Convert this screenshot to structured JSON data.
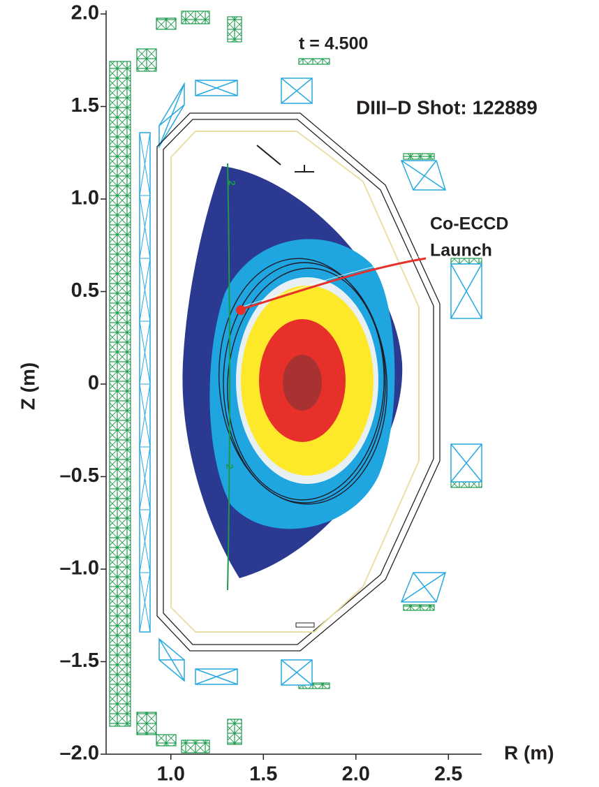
{
  "chart_data": {
    "type": "equilibrium",
    "title": "DIII–D Shot: 122889",
    "subtitle": "t = 4.500",
    "x_label": "R (m)",
    "y_label": "Z (m)",
    "annotations": [
      "Co-ECCD",
      "Launch"
    ],
    "contour_labels": [
      "2",
      "2"
    ],
    "xlim": [
      0.65,
      2.68
    ],
    "ylim": [
      -2.0,
      2.0
    ],
    "xticks": [
      {
        "value": 1.0,
        "label": "1.0"
      },
      {
        "value": 1.5,
        "label": "1.5"
      },
      {
        "value": 2.0,
        "label": "2.0"
      },
      {
        "value": 2.5,
        "label": "2.5"
      }
    ],
    "yticks": [
      {
        "value": 2.0,
        "label": "2.0"
      },
      {
        "value": 1.5,
        "label": "1.5"
      },
      {
        "value": 1.0,
        "label": "1.0"
      },
      {
        "value": 0.5,
        "label": "0.5"
      },
      0,
      {
        "value": -0.5,
        "label": "–0.5"
      },
      {
        "value": -1.0,
        "label": "–1.0"
      },
      {
        "value": -1.5,
        "label": "–1.5"
      },
      {
        "value": -2.0,
        "label": "–2.0"
      }
    ]
  }
}
